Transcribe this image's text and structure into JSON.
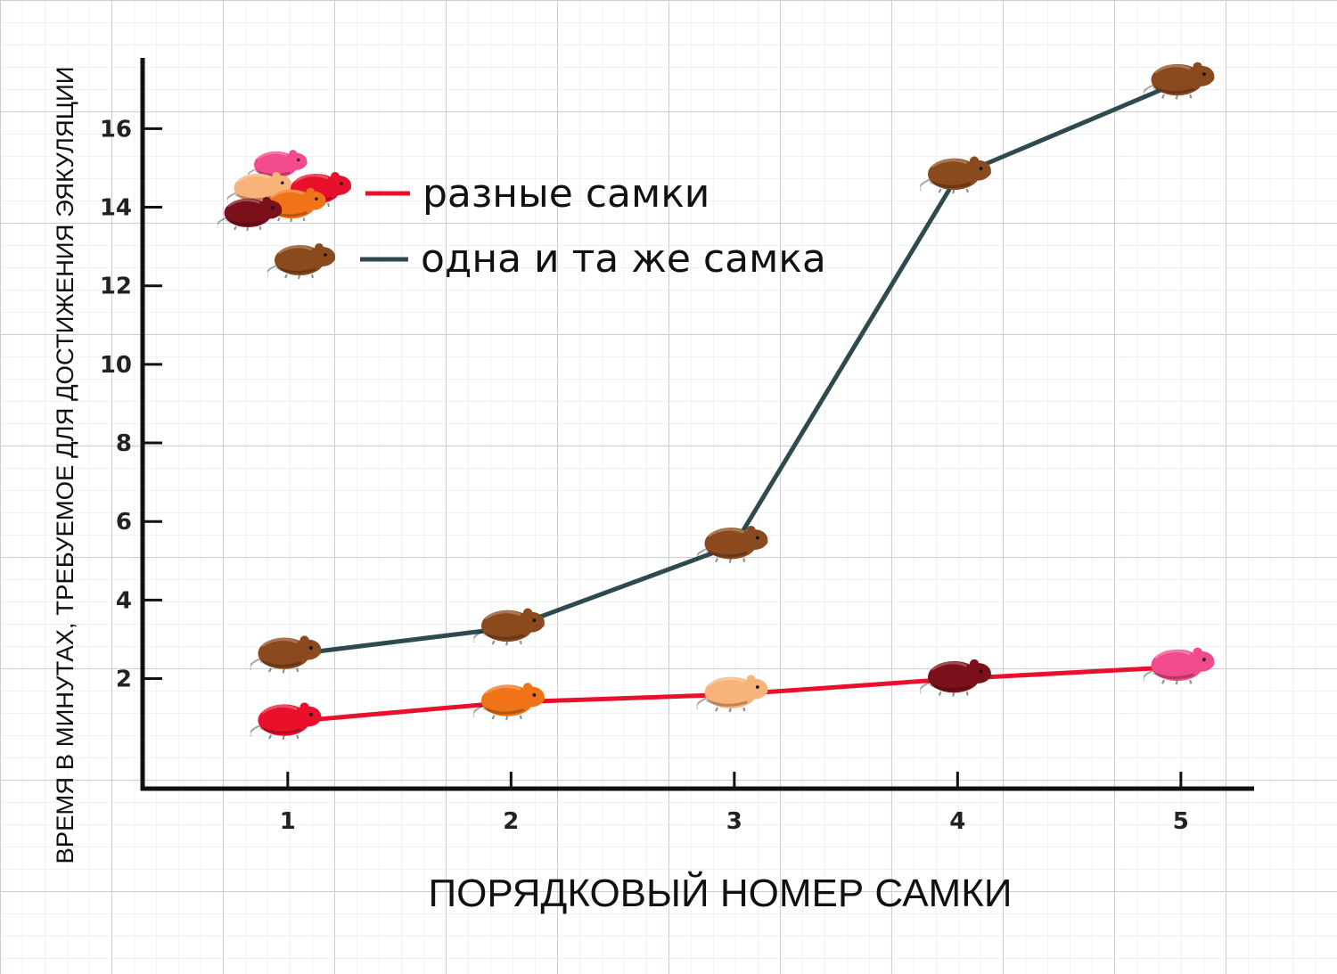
{
  "chart_data": {
    "type": "line",
    "title": "",
    "xlabel": "ПОРЯДКОВЫЙ НОМЕР САМКИ",
    "ylabel": "ВРЕМЯ В МИНУТАХ, ТРЕБУЕМОЕ ДЛЯ ДОСТИЖЕНИЯ ЭЯКУЛЯЦИИ",
    "x": [
      1,
      2,
      3,
      4,
      5
    ],
    "xticks": [
      "1",
      "2",
      "3",
      "4",
      "5"
    ],
    "yticks": [
      "2",
      "4",
      "6",
      "8",
      "10",
      "12",
      "14",
      "16"
    ],
    "xlim": [
      0.35,
      5.3
    ],
    "ylim": [
      -0.8,
      17.8
    ],
    "grid": true,
    "legend_position": "top-left",
    "series": [
      {
        "name": "разные самки",
        "color": "#e8102a",
        "values": [
          0.9,
          1.4,
          1.6,
          2.0,
          2.3
        ],
        "marker_colors": [
          "#e8102a",
          "#f07318",
          "#f7b37a",
          "#7b0f1a",
          "#f24a8c"
        ]
      },
      {
        "name": "одна и та же самка",
        "color": "#2f4a4e",
        "values": [
          2.6,
          3.3,
          5.4,
          14.8,
          17.2
        ],
        "marker_colors": [
          "#8a4a1e",
          "#8a4a1e",
          "#8a4a1e",
          "#8a4a1e",
          "#8a4a1e"
        ]
      }
    ],
    "marker_icon": "rat-icon"
  }
}
